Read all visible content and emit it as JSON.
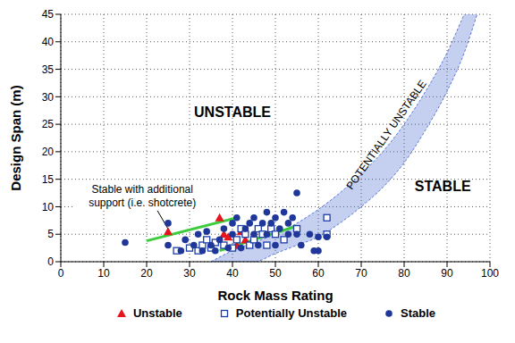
{
  "chart_data": {
    "type": "scatter",
    "x_label": "Rock Mass Rating",
    "y_label": "Design Span (m)",
    "xlim": [
      0,
      100
    ],
    "xticks": [
      0,
      10,
      20,
      30,
      40,
      50,
      60,
      70,
      80,
      90,
      100
    ],
    "ylim": [
      0,
      45
    ],
    "yticks": [
      0,
      5,
      10,
      15,
      20,
      25,
      30,
      35,
      40,
      45
    ],
    "grid": true,
    "legend": "bottom",
    "series": [
      {
        "name": "Unstable",
        "color": "#e8141c",
        "marker": "triangle",
        "x": [
          25,
          37,
          38,
          39,
          41,
          42,
          43
        ],
        "values": [
          5.5,
          8,
          5,
          4.5,
          3,
          5.5,
          4
        ]
      },
      {
        "name": "Potentially Unstable",
        "color": "#1a3ca8",
        "marker": "open_square",
        "x": [
          27,
          30,
          32,
          33,
          34,
          35,
          36,
          38,
          40,
          41,
          42,
          43,
          44,
          45,
          46,
          47,
          48,
          49,
          50,
          52,
          55,
          62,
          62
        ],
        "values": [
          2,
          2.5,
          2,
          3,
          4,
          2.5,
          3.5,
          3,
          2.5,
          4,
          6,
          5,
          3,
          4,
          6,
          5,
          3,
          6,
          5,
          4,
          6,
          8,
          5
        ]
      },
      {
        "name": "Stable",
        "color": "#1e3799",
        "marker": "circle",
        "x": [
          15,
          25,
          25,
          28,
          29,
          31,
          32,
          33,
          34,
          35,
          36,
          37,
          38,
          39,
          40,
          40,
          41,
          42,
          43,
          44,
          45,
          45,
          46,
          47,
          48,
          48,
          49,
          50,
          50,
          51,
          52,
          53,
          53,
          54,
          55,
          55,
          56,
          58,
          59,
          60,
          60,
          62
        ],
        "values": [
          3.5,
          7,
          3,
          2,
          4,
          3,
          5,
          2,
          5.5,
          3,
          2,
          4,
          6,
          2.5,
          5,
          7,
          8,
          2.5,
          6,
          7,
          5,
          8,
          3,
          7,
          5,
          9,
          7,
          8,
          3,
          6,
          9,
          5,
          7,
          8,
          12.5,
          5,
          3,
          5,
          2,
          4.5,
          2,
          4.5
        ]
      }
    ],
    "band": {
      "name": "POTENTIALLY UNSTABLE",
      "color": "#5a78d8",
      "x": [
        35,
        40,
        45,
        50,
        55,
        60,
        65,
        70,
        75,
        80,
        85,
        90,
        94,
        97
      ],
      "lower": [
        0,
        0,
        0,
        1.5,
        3,
        4.5,
        7,
        10,
        13.5,
        18,
        24,
        31,
        38,
        45
      ],
      "upper": [
        0,
        2,
        3.5,
        5,
        7,
        9.5,
        12.5,
        16,
        20,
        25,
        31,
        38,
        45,
        50
      ]
    },
    "support_lines": {
      "color": "#3ccc3c",
      "lines": [
        {
          "x": [
            20,
            41
          ],
          "values": [
            3.8,
            8
          ]
        },
        {
          "x": [
            37,
            55
          ],
          "values": [
            2,
            6.5
          ]
        }
      ]
    },
    "annotations": [
      "UNSTABLE",
      "STABLE",
      "Stable with additional support (i.e. shotcrete)"
    ]
  }
}
